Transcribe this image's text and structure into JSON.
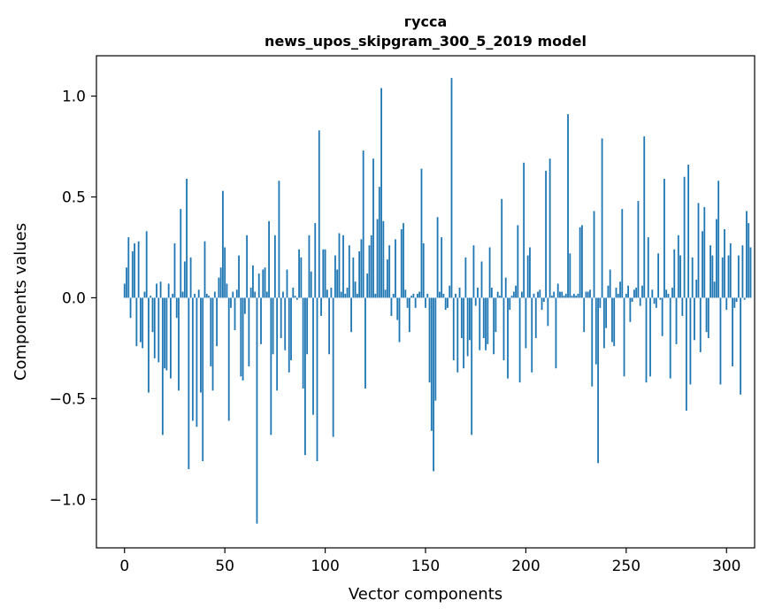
{
  "chart_data": {
    "type": "bar",
    "title": "гусса",
    "subtitle": "news_upos_skipgram_300_5_2019 model",
    "xlabel": "Vector components",
    "ylabel": "Components values",
    "xlim": [
      -14,
      314
    ],
    "ylim": [
      -1.24,
      1.2
    ],
    "x_ticks": [
      {
        "value": 0,
        "label": "0"
      },
      {
        "value": 50,
        "label": "50"
      },
      {
        "value": 100,
        "label": "100"
      },
      {
        "value": 150,
        "label": "150"
      },
      {
        "value": 200,
        "label": "200"
      },
      {
        "value": 250,
        "label": "250"
      },
      {
        "value": 300,
        "label": "300"
      }
    ],
    "y_ticks": [
      {
        "value": 1.0,
        "label": "1.0"
      },
      {
        "value": 0.5,
        "label": "0.5"
      },
      {
        "value": 0.0,
        "label": "0.0"
      },
      {
        "value": -0.5,
        "label": "−0.5"
      },
      {
        "value": -1.0,
        "label": "−1.0"
      }
    ],
    "bar_color": "#1f77b4",
    "values": [
      0.07,
      0.15,
      0.3,
      -0.1,
      0.23,
      0.27,
      -0.24,
      0.28,
      -0.22,
      -0.25,
      0.03,
      0.33,
      -0.47,
      0.01,
      -0.17,
      -0.3,
      0.07,
      -0.32,
      0.08,
      -0.68,
      -0.35,
      -0.36,
      0.07,
      -0.4,
      0.02,
      0.27,
      -0.1,
      -0.46,
      0.44,
      0.03,
      0.18,
      0.59,
      -0.85,
      0.2,
      -0.61,
      0.02,
      -0.64,
      0.04,
      -0.47,
      -0.81,
      0.28,
      0.02,
      0.01,
      -0.34,
      -0.46,
      0.03,
      -0.24,
      0.1,
      0.15,
      0.53,
      0.25,
      0.07,
      -0.61,
      -0.05,
      0.03,
      -0.16,
      0.04,
      0.21,
      -0.39,
      -0.41,
      -0.08,
      0.31,
      -0.34,
      0.05,
      0.16,
      0.03,
      -1.12,
      0.12,
      -0.23,
      0.14,
      0.15,
      0.03,
      0.38,
      -0.68,
      -0.28,
      0.31,
      -0.46,
      0.58,
      -0.2,
      0.03,
      -0.26,
      0.14,
      -0.37,
      -0.31,
      0.05,
      0.01,
      -0.01,
      0.24,
      0.2,
      -0.45,
      -0.78,
      -0.28,
      0.31,
      0.13,
      -0.58,
      0.37,
      -0.81,
      0.83,
      -0.09,
      0.24,
      0.24,
      0.04,
      -0.28,
      0.05,
      -0.69,
      0.21,
      0.14,
      0.32,
      0.03,
      0.31,
      0.02,
      0.05,
      0.26,
      -0.17,
      0.2,
      0.08,
      0.02,
      0.23,
      0.29,
      0.73,
      -0.45,
      0.12,
      0.26,
      0.31,
      0.69,
      0.02,
      0.39,
      0.55,
      1.04,
      0.38,
      0.04,
      0.19,
      0.26,
      -0.09,
      0.02,
      0.29,
      -0.11,
      -0.22,
      0.34,
      0.37,
      0.04,
      -0.05,
      -0.17,
      0.01,
      0.02,
      -0.05,
      0.02,
      0.03,
      0.64,
      0.27,
      -0.05,
      0.02,
      -0.42,
      -0.66,
      -0.86,
      -0.51,
      0.4,
      0.03,
      0.3,
      0.02,
      -0.06,
      -0.05,
      0.06,
      1.09,
      -0.31,
      0.02,
      -0.37,
      0.05,
      -0.2,
      -0.35,
      0.2,
      -0.29,
      -0.21,
      -0.68,
      0.26,
      -0.04,
      0.05,
      -0.26,
      0.18,
      -0.2,
      -0.26,
      -0.23,
      0.25,
      0.05,
      -0.28,
      -0.17,
      0.03,
      0.01,
      0.49,
      -0.31,
      0.1,
      -0.4,
      -0.06,
      0.01,
      0.03,
      0.06,
      0.36,
      -0.42,
      0.03,
      0.67,
      -0.25,
      0.21,
      0.25,
      -0.37,
      0.02,
      -0.2,
      0.03,
      0.04,
      -0.06,
      -0.02,
      0.63,
      -0.14,
      0.69,
      0.01,
      0.03,
      -0.35,
      0.07,
      0.03,
      0.03,
      0.01,
      0.02,
      0.91,
      0.22,
      0.01,
      0.02,
      0.01,
      0.02,
      0.35,
      0.36,
      -0.17,
      0.03,
      0.03,
      0.04,
      -0.44,
      0.43,
      -0.33,
      -0.82,
      -0.05,
      0.79,
      -0.25,
      -0.15,
      0.06,
      0.14,
      -0.22,
      -0.24,
      0.05,
      0.02,
      0.08,
      0.44,
      -0.39,
      0.02,
      0.06,
      -0.12,
      -0.02,
      0.04,
      0.05,
      0.48,
      -0.04,
      0.06,
      0.8,
      -0.42,
      0.3,
      -0.39,
      0.04,
      -0.03,
      -0.05,
      0.22,
      -0.01,
      -0.19,
      0.59,
      0.04,
      0.02,
      -0.4,
      0.05,
      0.24,
      -0.23,
      0.31,
      0.21,
      -0.09,
      0.6,
      -0.56,
      0.66,
      -0.43,
      0.2,
      -0.21,
      0.09,
      0.47,
      -0.27,
      0.33,
      0.45,
      -0.17,
      -0.2,
      0.26,
      0.21,
      0.08,
      0.39,
      0.58,
      -0.43,
      0.2,
      0.34,
      -0.06,
      0.21,
      0.27,
      -0.34,
      -0.05,
      -0.02,
      0.21,
      -0.48,
      0.26,
      -0.01,
      0.43,
      0.37,
      0.25
    ]
  }
}
